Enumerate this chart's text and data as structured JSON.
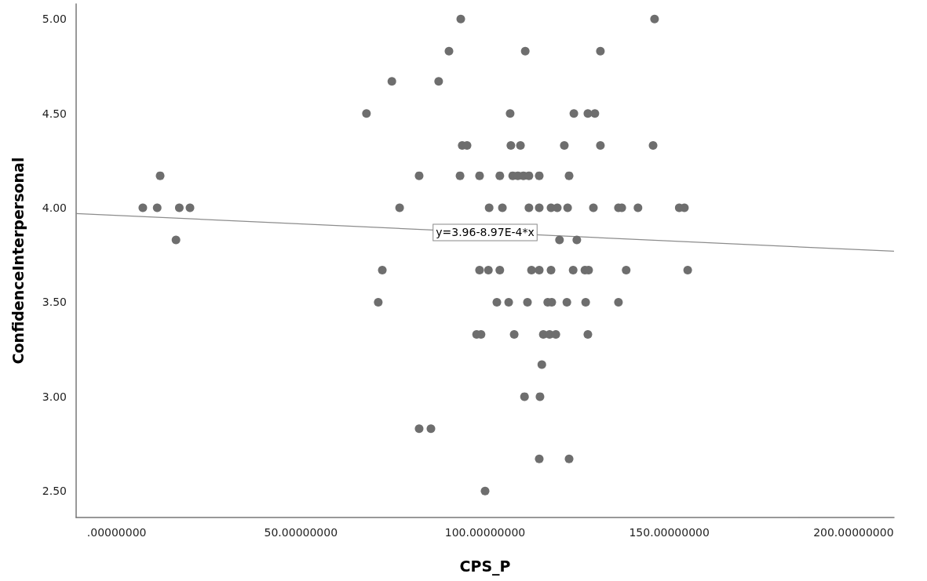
{
  "chart_data": {
    "type": "scatter",
    "xlabel": "CPS_P",
    "ylabel": "ConfidenceInterpersonal",
    "xlim": [
      -11,
      211
    ],
    "ylim": [
      2.36,
      5.08
    ],
    "xticks": [
      {
        "value": 0,
        "label": ".00000000"
      },
      {
        "value": 50,
        "label": "50.00000000"
      },
      {
        "value": 100,
        "label": "100.00000000"
      },
      {
        "value": 150,
        "label": "150.00000000"
      },
      {
        "value": 200,
        "label": "200.00000000"
      }
    ],
    "yticks": [
      {
        "value": 2.5,
        "label": "2.50"
      },
      {
        "value": 3,
        "label": "3.00"
      },
      {
        "value": 3.5,
        "label": "3.50"
      },
      {
        "value": 4,
        "label": "4.00"
      },
      {
        "value": 4.5,
        "label": "4.50"
      },
      {
        "value": 5,
        "label": "5.00"
      }
    ],
    "grid": false,
    "marker": "circle",
    "annotations": [
      {
        "text": "y=3.96-8.97E-4*x",
        "x": 100,
        "y": 3.87
      }
    ],
    "series": [
      {
        "color": "#6e6e6e",
        "x": [
          93.4,
          146.0,
          90.2,
          110.9,
          131.3,
          74.7,
          87.4,
          67.8,
          106.8,
          124.1,
          127.9,
          129.8,
          93.8,
          95.1,
          107.0,
          109.6,
          121.5,
          131.3,
          145.6,
          11.8,
          82.1,
          93.2,
          98.5,
          104.0,
          107.5,
          108.9,
          110.4,
          111.9,
          114.7,
          122.8,
          7.1,
          11.0,
          17.0,
          19.9,
          76.8,
          101.1,
          104.7,
          111.9,
          114.7,
          117.9,
          119.6,
          122.4,
          129.4,
          136.2,
          137.1,
          141.5,
          152.7,
          154.1,
          16.1,
          120.2,
          124.9,
          72.1,
          98.5,
          100.9,
          104.0,
          112.6,
          114.7,
          117.9,
          123.9,
          127.1,
          128.1,
          138.3,
          155.0,
          71.0,
          103.2,
          106.4,
          111.5,
          117.0,
          118.1,
          122.2,
          127.3,
          136.2,
          97.7,
          98.9,
          107.9,
          115.8,
          117.5,
          119.2,
          127.9,
          115.4,
          110.7,
          114.9,
          82.1,
          85.3,
          114.7,
          122.8,
          100.0
        ],
        "values": [
          5.0,
          5.0,
          4.83,
          4.83,
          4.83,
          4.67,
          4.67,
          4.5,
          4.5,
          4.5,
          4.5,
          4.5,
          4.33,
          4.33,
          4.33,
          4.33,
          4.33,
          4.33,
          4.33,
          4.17,
          4.17,
          4.17,
          4.17,
          4.17,
          4.17,
          4.17,
          4.17,
          4.17,
          4.17,
          4.17,
          4.0,
          4.0,
          4.0,
          4.0,
          4.0,
          4.0,
          4.0,
          4.0,
          4.0,
          4.0,
          4.0,
          4.0,
          4.0,
          4.0,
          4.0,
          4.0,
          4.0,
          4.0,
          3.83,
          3.83,
          3.83,
          3.67,
          3.67,
          3.67,
          3.67,
          3.67,
          3.67,
          3.67,
          3.67,
          3.67,
          3.67,
          3.67,
          3.67,
          3.5,
          3.5,
          3.5,
          3.5,
          3.5,
          3.5,
          3.5,
          3.5,
          3.5,
          3.33,
          3.33,
          3.33,
          3.33,
          3.33,
          3.33,
          3.33,
          3.17,
          3.0,
          3.0,
          2.83,
          2.83,
          2.67,
          2.67,
          2.5
        ]
      },
      {
        "type": "line",
        "color": "#8c8c8c",
        "marker": "none",
        "x": [
          -11,
          211
        ],
        "values": [
          3.97,
          3.77
        ]
      }
    ]
  }
}
